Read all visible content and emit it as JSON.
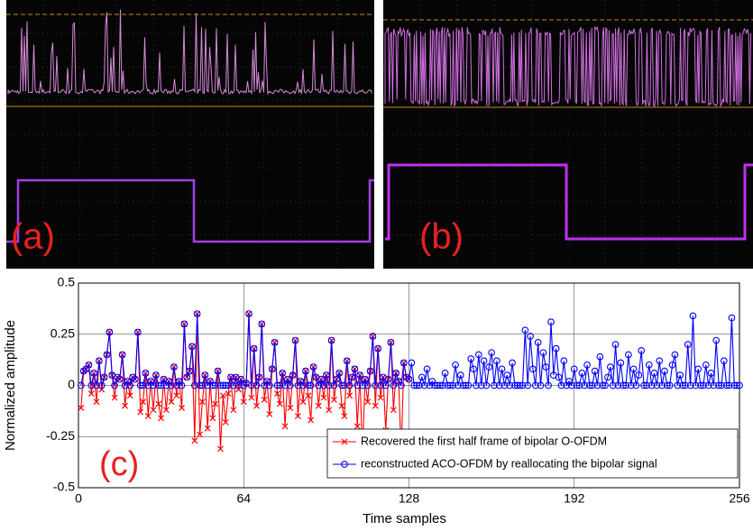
{
  "panels": [
    {
      "label": "(a)"
    },
    {
      "label": "(b)"
    }
  ],
  "chart_data": {
    "type": "line",
    "annotation": "(c)",
    "xlabel": "Time samples",
    "ylabel": "Normalized amplitude",
    "xlim": [
      0,
      256
    ],
    "xticks": [
      0,
      64,
      128,
      192,
      256
    ],
    "ylim": [
      -0.5,
      0.5
    ],
    "yticks": [
      -0.5,
      -0.25,
      0,
      0.25,
      0.5
    ],
    "grid": true,
    "legend": "lower right",
    "x": [
      1,
      2,
      3,
      4,
      5,
      6,
      7,
      8,
      9,
      10,
      11,
      12,
      13,
      14,
      15,
      16,
      17,
      18,
      19,
      20,
      21,
      22,
      23,
      24,
      25,
      26,
      27,
      28,
      29,
      30,
      31,
      32,
      33,
      34,
      35,
      36,
      37,
      38,
      39,
      40,
      41,
      42,
      43,
      44,
      45,
      46,
      47,
      48,
      49,
      50,
      51,
      52,
      53,
      54,
      55,
      56,
      57,
      58,
      59,
      60,
      61,
      62,
      63,
      64,
      65,
      66,
      67,
      68,
      69,
      70,
      71,
      72,
      73,
      74,
      75,
      76,
      77,
      78,
      79,
      80,
      81,
      82,
      83,
      84,
      85,
      86,
      87,
      88,
      89,
      90,
      91,
      92,
      93,
      94,
      95,
      96,
      97,
      98,
      99,
      100,
      101,
      102,
      103,
      104,
      105,
      106,
      107,
      108,
      109,
      110,
      111,
      112,
      113,
      114,
      115,
      116,
      117,
      118,
      119,
      120,
      121,
      122,
      123,
      124,
      125,
      126,
      127,
      128,
      129,
      130,
      131,
      132,
      133,
      134,
      135,
      136,
      137,
      138,
      139,
      140,
      141,
      142,
      143,
      144,
      145,
      146,
      147,
      148,
      149,
      150,
      151,
      152,
      153,
      154,
      155,
      156,
      157,
      158,
      159,
      160,
      161,
      162,
      163,
      164,
      165,
      166,
      167,
      168,
      169,
      170,
      171,
      172,
      173,
      174,
      175,
      176,
      177,
      178,
      179,
      180,
      181,
      182,
      183,
      184,
      185,
      186,
      187,
      188,
      189,
      190,
      191,
      192,
      193,
      194,
      195,
      196,
      197,
      198,
      199,
      200,
      201,
      202,
      203,
      204,
      205,
      206,
      207,
      208,
      209,
      210,
      211,
      212,
      213,
      214,
      215,
      216,
      217,
      218,
      219,
      220,
      221,
      222,
      223,
      224,
      225,
      226,
      227,
      228,
      229,
      230,
      231,
      232,
      233,
      234,
      235,
      236,
      237,
      238,
      239,
      240,
      241,
      242,
      243,
      244,
      245,
      246,
      247,
      248,
      249,
      250,
      251,
      252,
      253,
      254,
      255,
      256
    ],
    "series": [
      {
        "name": "Recovered the first half frame of bipolar O-OFDM",
        "color": "#ff0000",
        "marker": "x",
        "values": [
          -0.11,
          0.07,
          0.08,
          0.1,
          -0.04,
          0.06,
          -0.08,
          0.12,
          -0.02,
          0.04,
          0.15,
          0.26,
          0.05,
          -0.06,
          0.04,
          0.03,
          0.15,
          -0.1,
          0.02,
          -0.05,
          0.04,
          0.03,
          0.26,
          -0.13,
          -0.08,
          0.06,
          -0.15,
          0.02,
          -0.12,
          0.05,
          -0.09,
          -0.16,
          0.03,
          -0.12,
          0.02,
          -0.08,
          0.09,
          -0.05,
          0.02,
          -0.11,
          0.3,
          0.04,
          0.07,
          0.19,
          -0.27,
          0.35,
          -0.24,
          -0.08,
          0.05,
          -0.21,
          0.02,
          -0.16,
          -0.09,
          0.07,
          -0.31,
          -0.05,
          -0.18,
          -0.04,
          0.04,
          -0.12,
          0.04,
          -0.02,
          0.03,
          -0.08,
          0.01,
          0.35,
          -0.06,
          0.18,
          -0.1,
          0.04,
          0.3,
          -0.07,
          0.02,
          -0.14,
          0.08,
          0.21,
          -0.04,
          -0.09,
          0.06,
          -0.2,
          0.03,
          -0.11,
          0.05,
          0.22,
          -0.15,
          0.02,
          -0.08,
          0.07,
          -0.05,
          -0.17,
          0.09,
          0.04,
          -0.1,
          0.03,
          -0.06,
          0.05,
          -0.12,
          0.22,
          -0.07,
          0.03,
          0.06,
          -0.1,
          -0.15,
          0.12,
          -0.05,
          0.04,
          0.08,
          -0.2,
          0.05,
          -0.34,
          0.03,
          -0.08,
          0.07,
          0.24,
          -0.1,
          0.18,
          -0.06,
          0.04,
          -0.22,
          0.03,
          0.21,
          -0.12,
          0.06,
          0.02,
          -0.33,
          0.11,
          0.04,
          0.03,
          null,
          null,
          null,
          null,
          null,
          null,
          null,
          null,
          null,
          null,
          null,
          null,
          null,
          null,
          null,
          null,
          null,
          null,
          null,
          null,
          null,
          null,
          null,
          null,
          null,
          null,
          null,
          null,
          null,
          null,
          null,
          null,
          null,
          null,
          null,
          null,
          null,
          null,
          null,
          null,
          null,
          null,
          null,
          null,
          null,
          null,
          null,
          null,
          null,
          null,
          null,
          null,
          null,
          null,
          null,
          null,
          null,
          null,
          null,
          null,
          null,
          null,
          null,
          null,
          null,
          null,
          null,
          null,
          null,
          null,
          null,
          null,
          null,
          null,
          null,
          null,
          null,
          null,
          null,
          null,
          null,
          null,
          null,
          null,
          null,
          null,
          null,
          null,
          null,
          null,
          null,
          null,
          null,
          null,
          null,
          null,
          null,
          null,
          null,
          null,
          null,
          null,
          null,
          null,
          null,
          null,
          null,
          null,
          null,
          null,
          null,
          null,
          null,
          null,
          null,
          null,
          null,
          null,
          null,
          null,
          null,
          null,
          null,
          null,
          null,
          null,
          null,
          null
        ]
      },
      {
        "name": "reconstructed ACO-OFDM by reallocating the bipolar signal",
        "color": "#0000ff",
        "marker": "o",
        "values": [
          0,
          0.07,
          0.08,
          0.1,
          0,
          0.06,
          0,
          0.12,
          0,
          0.04,
          0.15,
          0.26,
          0.05,
          0,
          0.04,
          0.03,
          0.15,
          0,
          0.02,
          0,
          0.04,
          0.03,
          0.26,
          0,
          0,
          0.06,
          0,
          0.02,
          0,
          0.05,
          0,
          0,
          0.03,
          0,
          0.02,
          0,
          0.09,
          0,
          0.02,
          0,
          0.3,
          0.04,
          0.07,
          0.19,
          0,
          0.35,
          0,
          0,
          0.05,
          0,
          0.02,
          0,
          0,
          0.07,
          0,
          0,
          0,
          0,
          0.04,
          0,
          0.04,
          0,
          0.03,
          0,
          0.01,
          0.35,
          0,
          0.18,
          0,
          0.04,
          0.3,
          0,
          0.02,
          0,
          0.08,
          0.21,
          0,
          0,
          0.06,
          0,
          0.03,
          0,
          0.05,
          0.22,
          0,
          0.02,
          0,
          0.07,
          0,
          0,
          0.09,
          0.04,
          0,
          0.03,
          0,
          0.05,
          0,
          0.22,
          0,
          0.03,
          0.06,
          0,
          0,
          0.12,
          0,
          0.04,
          0.08,
          0,
          0.05,
          0,
          0.03,
          0,
          0.07,
          0.24,
          0,
          0.18,
          0,
          0.04,
          0,
          0.03,
          0.21,
          0,
          0.06,
          0.02,
          0,
          0.11,
          0.04,
          0.03,
          0.11,
          0,
          0,
          0,
          0.04,
          0,
          0.08,
          0,
          0.02,
          0,
          0,
          0,
          0,
          0.06,
          0,
          0,
          0,
          0.1,
          0,
          0.05,
          0,
          0,
          0,
          0.13,
          0.08,
          0,
          0.15,
          0,
          0.12,
          0,
          0.09,
          0.16,
          0,
          0.12,
          0,
          0.08,
          0,
          0.05,
          0,
          0.11,
          0,
          0,
          0,
          0,
          0.27,
          0,
          0.24,
          0.08,
          0,
          0.21,
          0,
          0.16,
          0.09,
          0,
          0.31,
          0.05,
          0.18,
          0.04,
          0,
          0.12,
          0,
          0.02,
          0,
          0.08,
          0,
          0,
          0.06,
          0,
          0.1,
          0,
          0,
          0.07,
          0,
          0.14,
          0,
          0,
          0.04,
          0.09,
          0,
          0.2,
          0,
          0.11,
          0,
          0,
          0.15,
          0,
          0.08,
          0,
          0.05,
          0.17,
          0,
          0,
          0.1,
          0,
          0.06,
          0,
          0.12,
          0,
          0.07,
          0,
          0,
          0.1,
          0.15,
          0,
          0.05,
          0,
          0,
          0.2,
          0,
          0.34,
          0,
          0.08,
          0,
          0,
          0.1,
          0,
          0.06,
          0,
          0.22,
          0,
          0,
          0.12,
          0,
          0,
          0.33,
          0,
          0,
          0
        ]
      }
    ]
  }
}
